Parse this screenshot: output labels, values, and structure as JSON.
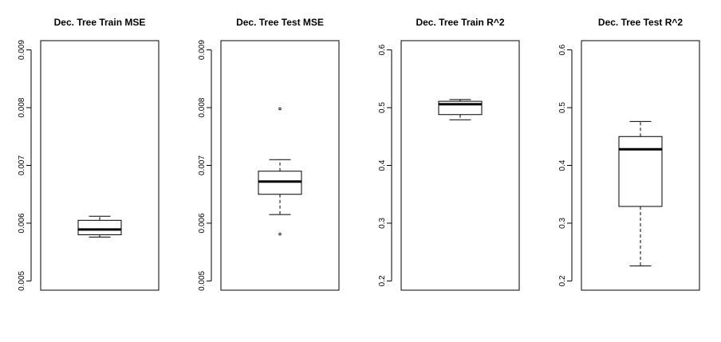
{
  "chart_data": [
    {
      "type": "box",
      "title": "Dec. Tree Train MSE",
      "ylim": [
        0.005,
        0.009
      ],
      "yticks": [
        0.005,
        0.006,
        0.007,
        0.008,
        0.009
      ],
      "ytick_labels": [
        "0.005",
        "0.006",
        "0.007",
        "0.008",
        "0.009"
      ],
      "box": {
        "whisker_low": 0.00576,
        "q1": 0.0058,
        "median": 0.00589,
        "q3": 0.00605,
        "whisker_high": 0.00612
      },
      "outliers": []
    },
    {
      "type": "box",
      "title": "Dec. Tree Test MSE",
      "ylim": [
        0.005,
        0.009
      ],
      "yticks": [
        0.005,
        0.006,
        0.007,
        0.008,
        0.009
      ],
      "ytick_labels": [
        "0.005",
        "0.006",
        "0.007",
        "0.008",
        "0.009"
      ],
      "box": {
        "whisker_low": 0.00615,
        "q1": 0.0065,
        "median": 0.00672,
        "q3": 0.0069,
        "whisker_high": 0.0071
      },
      "outliers": [
        0.00798,
        0.00581
      ]
    },
    {
      "type": "box",
      "title": "Dec. Tree Train R^2",
      "ylim": [
        0.2,
        0.6
      ],
      "yticks": [
        0.2,
        0.3,
        0.4,
        0.5,
        0.6
      ],
      "ytick_labels": [
        "0.2",
        "0.3",
        "0.4",
        "0.5",
        "0.6"
      ],
      "box": {
        "whisker_low": 0.479,
        "q1": 0.488,
        "median": 0.506,
        "q3": 0.511,
        "whisker_high": 0.514
      },
      "outliers": []
    },
    {
      "type": "box",
      "title": "Dec. Tree Test R^2",
      "ylim": [
        0.2,
        0.6
      ],
      "yticks": [
        0.2,
        0.3,
        0.4,
        0.5,
        0.6
      ],
      "ytick_labels": [
        "0.2",
        "0.3",
        "0.4",
        "0.5",
        "0.6"
      ],
      "box": {
        "whisker_low": 0.226,
        "q1": 0.329,
        "median": 0.428,
        "q3": 0.45,
        "whisker_high": 0.476
      },
      "outliers": []
    }
  ]
}
